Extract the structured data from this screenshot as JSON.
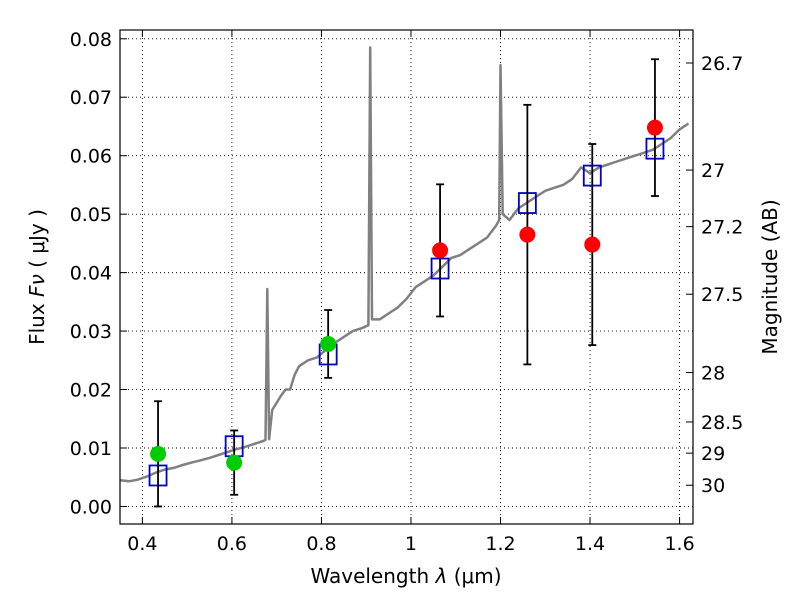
{
  "chart_data": {
    "type": "scatter",
    "xlabel_prefix": "Wavelength",
    "xlabel_symbol": "λ",
    "xlabel_unit": "(μm)",
    "ylabel_prefix": "Flux",
    "ylabel_symbol": "Fν",
    "ylabel_unit": "( μJy )",
    "y2label": "Magnitude (AB)",
    "xlim": [
      0.35,
      1.63
    ],
    "ylim": [
      -0.003,
      0.0815
    ],
    "grid": true,
    "x_ticks": [
      {
        "value": 0.4,
        "label": "0.4"
      },
      {
        "value": 0.6,
        "label": "0.6"
      },
      {
        "value": 0.8,
        "label": "0.8"
      },
      {
        "value": 1.0,
        "label": "1"
      },
      {
        "value": 1.2,
        "label": "1.2"
      },
      {
        "value": 1.4,
        "label": "1.4"
      },
      {
        "value": 1.6,
        "label": "1.6"
      }
    ],
    "y_ticks": [
      {
        "value": 0.0,
        "label": "0.00"
      },
      {
        "value": 0.01,
        "label": "0.01"
      },
      {
        "value": 0.02,
        "label": "0.02"
      },
      {
        "value": 0.03,
        "label": "0.03"
      },
      {
        "value": 0.04,
        "label": "0.04"
      },
      {
        "value": 0.05,
        "label": "0.05"
      },
      {
        "value": 0.06,
        "label": "0.06"
      },
      {
        "value": 0.07,
        "label": "0.07"
      },
      {
        "value": 0.08,
        "label": "0.08"
      }
    ],
    "magnitude_ticks": [
      {
        "mag": 26.7,
        "label": "26.7"
      },
      {
        "mag": 27.0,
        "label": "27"
      },
      {
        "mag": 27.2,
        "label": "27.2"
      },
      {
        "mag": 27.5,
        "label": "27.5"
      },
      {
        "mag": 28.0,
        "label": "28"
      },
      {
        "mag": 28.5,
        "label": "28.5"
      },
      {
        "mag": 29.0,
        "label": "29"
      },
      {
        "mag": 30.0,
        "label": "30"
      }
    ],
    "series": [
      {
        "kind": "line",
        "color": "#808080",
        "points": [
          [
            0.35,
            0.0045
          ],
          [
            0.37,
            0.0043
          ],
          [
            0.39,
            0.0046
          ],
          [
            0.41,
            0.0051
          ],
          [
            0.43,
            0.0058
          ],
          [
            0.45,
            0.0063
          ],
          [
            0.47,
            0.0066
          ],
          [
            0.49,
            0.0071
          ],
          [
            0.51,
            0.0075
          ],
          [
            0.53,
            0.0079
          ],
          [
            0.55,
            0.0083
          ],
          [
            0.57,
            0.0088
          ],
          [
            0.59,
            0.0093
          ],
          [
            0.61,
            0.0098
          ],
          [
            0.63,
            0.0102
          ],
          [
            0.65,
            0.0107
          ],
          [
            0.67,
            0.0112
          ],
          [
            0.675,
            0.0114
          ],
          [
            0.679,
            0.0372
          ],
          [
            0.683,
            0.0115
          ],
          [
            0.69,
            0.0165
          ],
          [
            0.71,
            0.019
          ],
          [
            0.72,
            0.02
          ],
          [
            0.73,
            0.02
          ],
          [
            0.74,
            0.0225
          ],
          [
            0.75,
            0.024
          ],
          [
            0.77,
            0.025
          ],
          [
            0.79,
            0.0255
          ],
          [
            0.81,
            0.0268
          ],
          [
            0.83,
            0.028
          ],
          [
            0.85,
            0.029
          ],
          [
            0.87,
            0.03
          ],
          [
            0.89,
            0.0305
          ],
          [
            0.905,
            0.031
          ],
          [
            0.909,
            0.0785
          ],
          [
            0.913,
            0.032
          ],
          [
            0.93,
            0.032
          ],
          [
            0.95,
            0.033
          ],
          [
            0.97,
            0.034
          ],
          [
            0.99,
            0.0355
          ],
          [
            1.01,
            0.0375
          ],
          [
            1.03,
            0.0385
          ],
          [
            1.05,
            0.0395
          ],
          [
            1.07,
            0.041
          ],
          [
            1.09,
            0.0425
          ],
          [
            1.11,
            0.043
          ],
          [
            1.13,
            0.044
          ],
          [
            1.15,
            0.045
          ],
          [
            1.17,
            0.046
          ],
          [
            1.19,
            0.048
          ],
          [
            1.197,
            0.049
          ],
          [
            1.2,
            0.0755
          ],
          [
            1.205,
            0.05
          ],
          [
            1.22,
            0.049
          ],
          [
            1.24,
            0.051
          ],
          [
            1.26,
            0.052
          ],
          [
            1.28,
            0.053
          ],
          [
            1.3,
            0.054
          ],
          [
            1.32,
            0.0545
          ],
          [
            1.34,
            0.055
          ],
          [
            1.36,
            0.056
          ],
          [
            1.38,
            0.058
          ],
          [
            1.4,
            0.057
          ],
          [
            1.42,
            0.058
          ],
          [
            1.44,
            0.0585
          ],
          [
            1.46,
            0.059
          ],
          [
            1.48,
            0.0595
          ],
          [
            1.5,
            0.06
          ],
          [
            1.52,
            0.0605
          ],
          [
            1.54,
            0.061
          ],
          [
            1.56,
            0.062
          ],
          [
            1.58,
            0.063
          ],
          [
            1.6,
            0.0645
          ],
          [
            1.62,
            0.0655
          ]
        ]
      },
      {
        "kind": "model-boxes",
        "color": "#0000cc",
        "points": [
          [
            0.435,
            0.0053
          ],
          [
            0.605,
            0.0103
          ],
          [
            0.815,
            0.026
          ],
          [
            1.065,
            0.0407
          ],
          [
            1.26,
            0.0519
          ],
          [
            1.405,
            0.0566
          ],
          [
            1.545,
            0.0612
          ]
        ]
      },
      {
        "kind": "detections",
        "color": "#00cc00",
        "points": [
          {
            "x": 0.435,
            "y": 0.009,
            "err": 0.009
          },
          {
            "x": 0.605,
            "y": 0.0075,
            "err": 0.0055
          },
          {
            "x": 0.815,
            "y": 0.0278,
            "err": 0.0058
          }
        ]
      },
      {
        "kind": "detections",
        "color": "#ff0000",
        "points": [
          {
            "x": 1.065,
            "y": 0.0438,
            "err": 0.0113
          },
          {
            "x": 1.26,
            "y": 0.0465,
            "err": 0.0222
          },
          {
            "x": 1.405,
            "y": 0.0448,
            "err": 0.0172
          },
          {
            "x": 1.545,
            "y": 0.0648,
            "err": 0.0117
          }
        ]
      }
    ]
  }
}
